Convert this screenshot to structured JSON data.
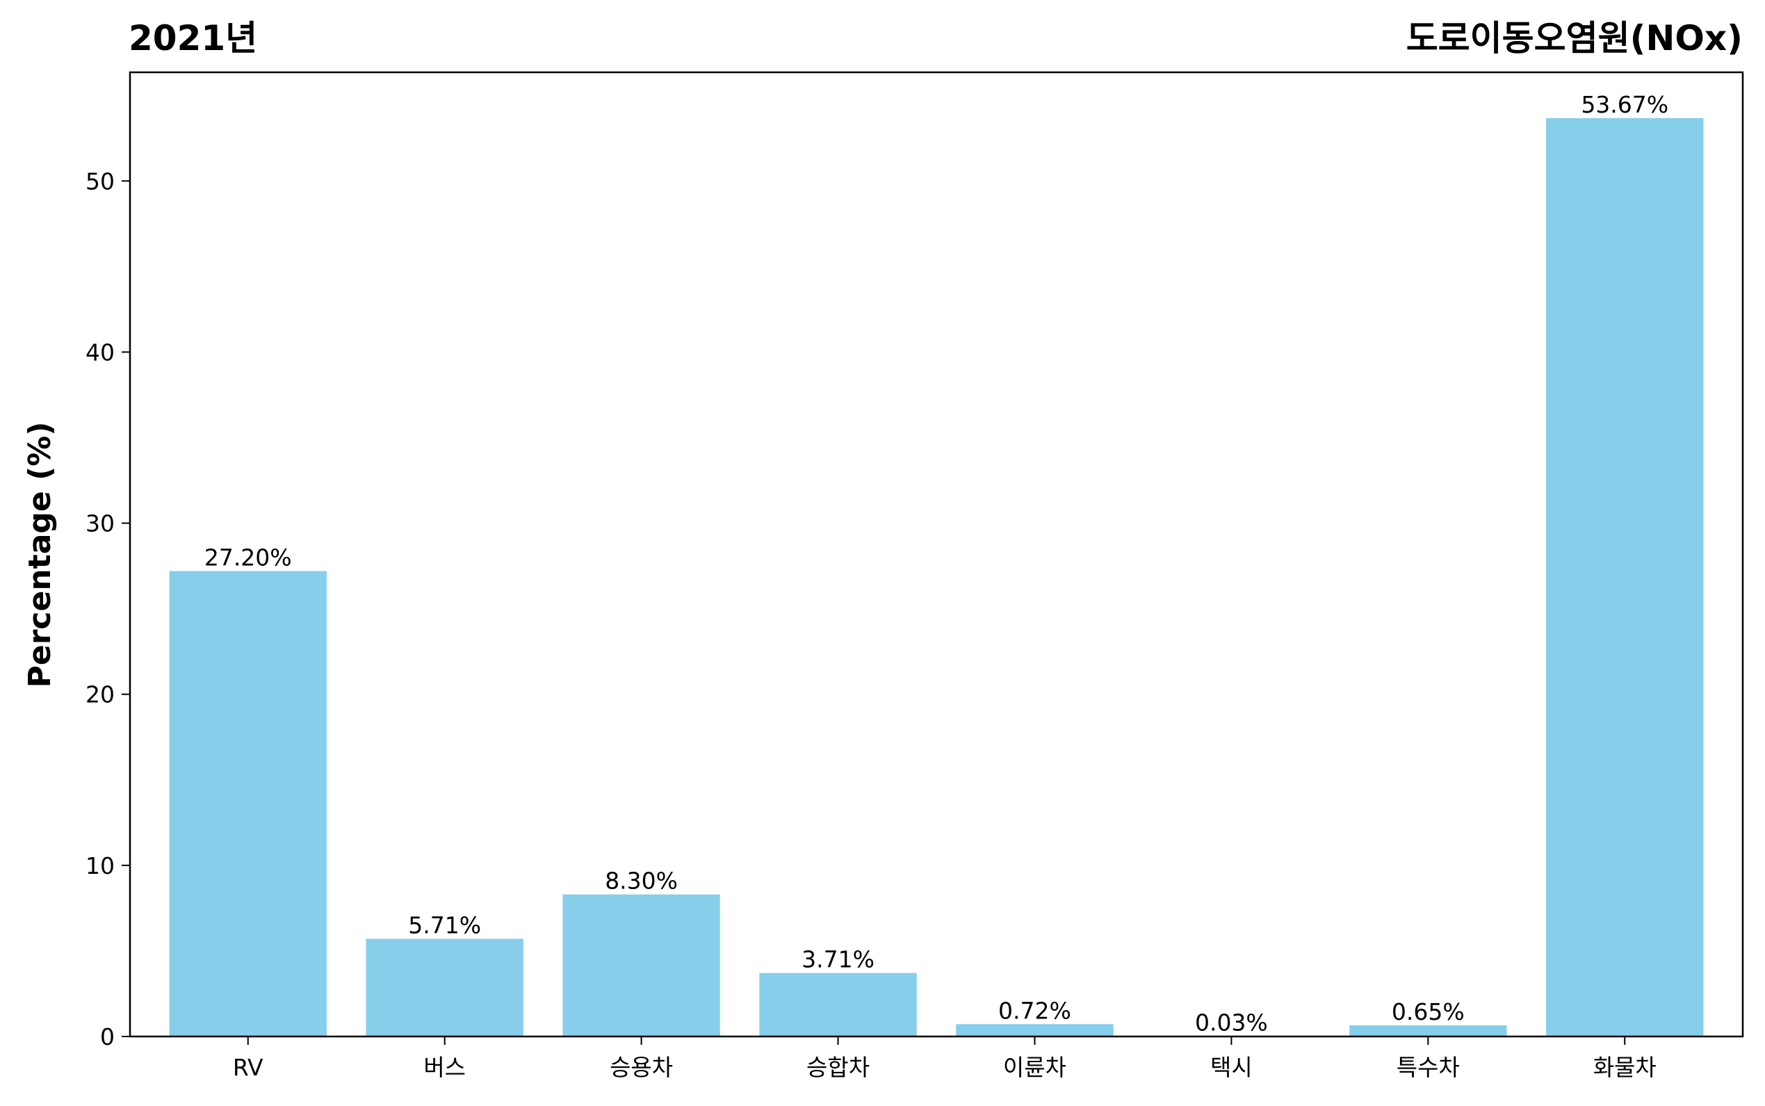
{
  "chart_data": {
    "type": "bar",
    "title_left": "2021년",
    "title_right": "도로이동오염원(NOx)",
    "xlabel": "",
    "ylabel": "Percentage (%)",
    "categories": [
      "RV",
      "버스",
      "승용차",
      "승합차",
      "이륜차",
      "택시",
      "특수차",
      "화물차"
    ],
    "values": [
      27.2,
      5.71,
      8.3,
      3.71,
      0.72,
      0.03,
      0.65,
      53.67
    ],
    "value_labels": [
      "27.20%",
      "5.71%",
      "8.30%",
      "3.71%",
      "0.72%",
      "0.03%",
      "0.65%",
      "53.67%"
    ],
    "ylim": [
      0,
      56.35
    ],
    "yticks": [
      0,
      10,
      20,
      30,
      40,
      50
    ],
    "bar_color": "#87ceeb",
    "grid": false,
    "legend": "none"
  }
}
